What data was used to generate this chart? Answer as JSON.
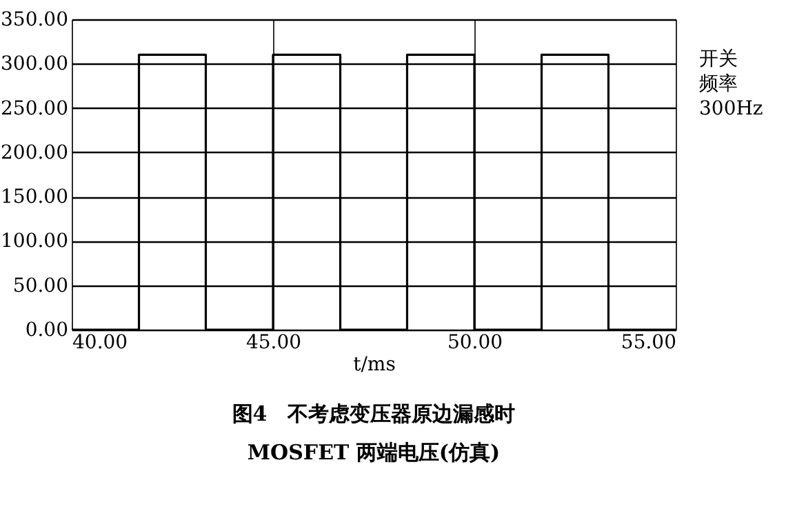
{
  "chart_data": {
    "type": "step",
    "title": [
      "图4　不考虑变压器原边漏感时",
      "MOSFET 两端电压(仿真)"
    ],
    "xlabel": "t/ms",
    "x": [
      40,
      41.67,
      43.33,
      45.0,
      46.67,
      48.33,
      50.0,
      51.67,
      53.33,
      55
    ],
    "series": [
      {
        "color": "#000000",
        "values": [
          0,
          310,
          0,
          310,
          0,
          310,
          0,
          310,
          0,
          0
        ]
      }
    ],
    "xlim": [
      40,
      55
    ],
    "xticks": [
      {
        "value": 40,
        "label": "40.00"
      },
      {
        "value": 45,
        "label": "45.00"
      },
      {
        "value": 50,
        "label": "50.00"
      },
      {
        "value": 55,
        "label": "55.00"
      }
    ],
    "ylim": [
      0,
      350
    ],
    "yticks": [
      {
        "value": 0,
        "label": "0.00"
      },
      {
        "value": 50,
        "label": "50.00"
      },
      {
        "value": 100,
        "label": "100.00"
      },
      {
        "value": 150,
        "label": "150.00"
      },
      {
        "value": 200,
        "label": "200.00"
      },
      {
        "value": 250,
        "label": "250.00"
      },
      {
        "value": 300,
        "label": "300.00"
      },
      {
        "value": 350,
        "label": "350.00"
      }
    ],
    "annotations": [
      "开关",
      "频率",
      "300Hz"
    ],
    "grid": true,
    "line_style": "solid"
  }
}
